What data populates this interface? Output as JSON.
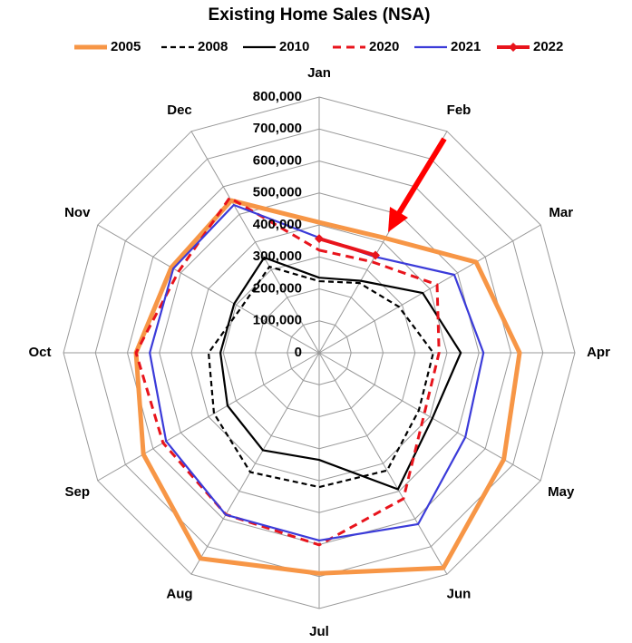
{
  "chart_data": {
    "type": "radar",
    "title": "Existing Home Sales (NSA)",
    "categories": [
      "Jan",
      "Feb",
      "Mar",
      "Apr",
      "May",
      "Jun",
      "Jul",
      "Aug",
      "Sep",
      "Oct",
      "Nov",
      "Dec"
    ],
    "ylim": [
      0,
      800000
    ],
    "yticks": [
      0,
      {
        "value": 100000,
        "label": "100,000"
      },
      {
        "value": 200000,
        "label": "200,000"
      },
      {
        "value": 300000,
        "label": "300,000"
      },
      {
        "value": 400000,
        "label": "400,000"
      },
      {
        "value": 500000,
        "label": "500,000"
      },
      {
        "value": 600000,
        "label": "600,000"
      },
      {
        "value": 700000,
        "label": "700,000"
      },
      {
        "value": 800000,
        "label": "800,000"
      }
    ],
    "grid": true,
    "legend": "top",
    "series": [
      {
        "name": "2005",
        "color": "#f79646",
        "line_style": "solid",
        "values": [
          408000,
          414000,
          567000,
          627000,
          667000,
          777000,
          690000,
          743000,
          635000,
          573000,
          534000,
          550000
        ]
      },
      {
        "name": "2008",
        "color": "#000000",
        "line_style": "dashed",
        "values": [
          224000,
          252000,
          288000,
          357000,
          360000,
          425000,
          420000,
          431000,
          380000,
          346000,
          282000,
          311000
        ]
      },
      {
        "name": "2010",
        "color": "#000000",
        "line_style": "solid",
        "values": [
          235000,
          260000,
          374000,
          443000,
          409000,
          493000,
          335000,
          352000,
          331000,
          309000,
          307000,
          344000
        ]
      },
      {
        "name": "2020",
        "color": "#e8141c",
        "line_style": "dashed",
        "values": [
          321000,
          329000,
          426000,
          375000,
          380000,
          527000,
          601000,
          584000,
          564000,
          573000,
          508000,
          560000
        ]
      },
      {
        "name": "2021",
        "color": "#3b3bd9",
        "line_style": "solid",
        "values": [
          360000,
          347000,
          488000,
          514000,
          528000,
          619000,
          587000,
          585000,
          553000,
          530000,
          527000,
          534000
        ]
      },
      {
        "name": "2022",
        "color": "#e8141c",
        "line_style": "solid",
        "marker": "diamond",
        "values": [
          357000,
          352000,
          null,
          null,
          null,
          null,
          null,
          null,
          null,
          null,
          null,
          null
        ]
      }
    ]
  }
}
